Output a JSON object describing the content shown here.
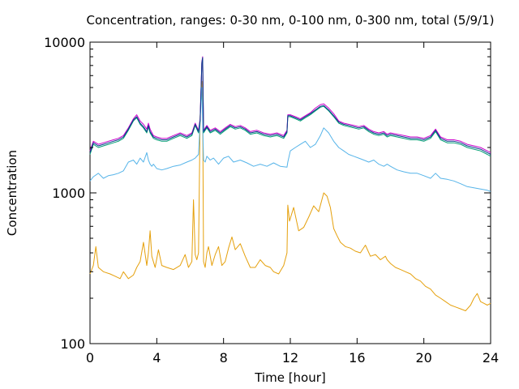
{
  "chart_data": {
    "type": "line",
    "title": "Concentration, ranges: 0-30 nm, 0-100 nm, 0-300 nm, total (5/9/1)",
    "xlabel": "Time [hour]",
    "ylabel": "Concentration",
    "xlim": [
      0,
      24
    ],
    "ylim": [
      100,
      10000
    ],
    "yscale": "log",
    "grid": false,
    "legend": "none",
    "x_ticks": [
      0,
      4,
      8,
      12,
      16,
      20,
      24
    ],
    "x_tick_labels": [
      "0",
      "4",
      "8",
      "12",
      "16",
      "20",
      "24"
    ],
    "y_ticks": [
      100,
      1000,
      10000
    ],
    "y_tick_labels": [
      "100",
      "1000",
      "10000"
    ],
    "series": [
      {
        "color": "#e5a00c",
        "x": [
          0,
          0.2,
          0.35,
          0.5,
          0.8,
          1.2,
          1.5,
          1.8,
          2.0,
          2.3,
          2.6,
          2.8,
          3.0,
          3.2,
          3.4,
          3.5,
          3.6,
          3.7,
          3.9,
          4.1,
          4.3,
          4.6,
          5.0,
          5.4,
          5.7,
          5.9,
          6.1,
          6.2,
          6.3,
          6.4,
          6.5,
          6.6,
          6.7,
          6.75,
          6.8,
          6.9,
          7.0,
          7.1,
          7.3,
          7.5,
          7.7,
          7.9,
          8.1,
          8.3,
          8.5,
          8.7,
          9.0,
          9.3,
          9.6,
          9.9,
          10.2,
          10.5,
          10.8,
          11.0,
          11.3,
          11.6,
          11.8,
          11.85,
          11.95,
          12.2,
          12.5,
          12.8,
          13.1,
          13.4,
          13.7,
          14.0,
          14.2,
          14.4,
          14.6,
          14.8,
          15.0,
          15.3,
          15.6,
          15.9,
          16.2,
          16.5,
          16.8,
          17.1,
          17.4,
          17.7,
          17.8,
          18.0,
          18.3,
          18.6,
          18.9,
          19.2,
          19.5,
          19.8,
          20.1,
          20.4,
          20.7,
          21.0,
          21.3,
          21.6,
          21.9,
          22.2,
          22.5,
          22.8,
          23.0,
          23.2,
          23.4,
          23.6,
          23.8,
          24.0
        ],
        "y": [
          290,
          330,
          440,
          320,
          300,
          290,
          280,
          270,
          300,
          270,
          285,
          320,
          350,
          470,
          330,
          400,
          560,
          380,
          320,
          420,
          330,
          320,
          310,
          330,
          390,
          320,
          350,
          900,
          390,
          360,
          400,
          3200,
          5500,
          4000,
          350,
          320,
          400,
          440,
          330,
          390,
          440,
          330,
          350,
          430,
          510,
          420,
          460,
          380,
          320,
          320,
          360,
          330,
          320,
          300,
          290,
          330,
          400,
          830,
          650,
          800,
          560,
          590,
          690,
          820,
          750,
          1000,
          950,
          800,
          580,
          520,
          470,
          440,
          430,
          410,
          400,
          450,
          380,
          390,
          360,
          380,
          360,
          340,
          320,
          310,
          300,
          290,
          270,
          260,
          240,
          230,
          210,
          200,
          190,
          180,
          175,
          170,
          165,
          180,
          200,
          215,
          190,
          185,
          180,
          185
        ]
      },
      {
        "color": "#56b4e9",
        "x": [
          0,
          0.2,
          0.5,
          0.8,
          1.1,
          1.4,
          1.7,
          2.0,
          2.3,
          2.6,
          2.8,
          3.0,
          3.2,
          3.4,
          3.5,
          3.6,
          3.7,
          3.8,
          4.0,
          4.3,
          4.6,
          5.0,
          5.4,
          5.8,
          6.1,
          6.3,
          6.5,
          6.7,
          6.8,
          6.9,
          7.0,
          7.2,
          7.4,
          7.7,
          8.0,
          8.3,
          8.6,
          9.0,
          9.4,
          9.8,
          10.2,
          10.6,
          11.0,
          11.4,
          11.8,
          11.85,
          12.0,
          12.3,
          12.6,
          12.9,
          13.2,
          13.5,
          13.8,
          14.0,
          14.3,
          14.6,
          14.9,
          15.2,
          15.5,
          15.8,
          16.1,
          16.4,
          16.7,
          17.0,
          17.3,
          17.6,
          17.8,
          18.0,
          18.4,
          18.8,
          19.2,
          19.6,
          20.0,
          20.4,
          20.7,
          21.0,
          21.4,
          21.8,
          22.2,
          22.6,
          23.0,
          23.4,
          23.8,
          24.0
        ],
        "y": [
          1200,
          1280,
          1350,
          1250,
          1300,
          1320,
          1350,
          1400,
          1600,
          1650,
          1550,
          1700,
          1600,
          1850,
          1650,
          1550,
          1500,
          1550,
          1450,
          1420,
          1450,
          1500,
          1530,
          1600,
          1650,
          1700,
          1800,
          5000,
          1650,
          1600,
          1750,
          1650,
          1700,
          1550,
          1700,
          1750,
          1600,
          1650,
          1580,
          1500,
          1550,
          1500,
          1580,
          1500,
          1480,
          1600,
          1900,
          2000,
          2100,
          2200,
          2000,
          2100,
          2400,
          2700,
          2500,
          2200,
          2000,
          1900,
          1800,
          1750,
          1700,
          1650,
          1600,
          1650,
          1550,
          1500,
          1550,
          1500,
          1420,
          1380,
          1350,
          1350,
          1300,
          1250,
          1350,
          1250,
          1230,
          1200,
          1150,
          1100,
          1080,
          1060,
          1040,
          1020
        ]
      },
      {
        "color": "#009e73",
        "x": [
          0,
          0.2,
          0.5,
          0.8,
          1.1,
          1.4,
          1.7,
          2.0,
          2.3,
          2.6,
          2.8,
          3.0,
          3.2,
          3.4,
          3.5,
          3.6,
          3.8,
          4.0,
          4.3,
          4.6,
          5.0,
          5.4,
          5.8,
          6.1,
          6.3,
          6.5,
          6.6,
          6.7,
          6.75,
          6.8,
          6.9,
          7.0,
          7.2,
          7.5,
          7.8,
          8.1,
          8.4,
          8.7,
          9.0,
          9.3,
          9.6,
          10.0,
          10.4,
          10.8,
          11.2,
          11.6,
          11.8,
          11.85,
          12.0,
          12.3,
          12.6,
          12.9,
          13.2,
          13.5,
          13.8,
          14.0,
          14.3,
          14.6,
          14.9,
          15.2,
          15.5,
          15.8,
          16.1,
          16.4,
          16.7,
          17.0,
          17.3,
          17.6,
          17.8,
          18.0,
          18.4,
          18.8,
          19.2,
          19.6,
          20.0,
          20.4,
          20.7,
          21.0,
          21.4,
          21.8,
          22.2,
          22.6,
          23.0,
          23.4,
          23.8,
          24.0
        ],
        "y": [
          1800,
          2100,
          2000,
          2050,
          2100,
          2150,
          2200,
          2300,
          2600,
          3000,
          3150,
          2850,
          2700,
          2500,
          2750,
          2500,
          2300,
          2250,
          2200,
          2200,
          2300,
          2400,
          2300,
          2400,
          2800,
          2500,
          3000,
          7200,
          7800,
          2500,
          2600,
          2700,
          2500,
          2600,
          2450,
          2600,
          2750,
          2650,
          2700,
          2600,
          2450,
          2500,
          2400,
          2350,
          2400,
          2300,
          2500,
          3200,
          3200,
          3100,
          3000,
          3150,
          3300,
          3500,
          3700,
          3750,
          3500,
          3200,
          2900,
          2800,
          2750,
          2700,
          2650,
          2700,
          2550,
          2450,
          2400,
          2450,
          2350,
          2400,
          2350,
          2300,
          2250,
          2250,
          2200,
          2300,
          2550,
          2250,
          2150,
          2150,
          2100,
          2000,
          1950,
          1900,
          1800,
          1750
        ]
      },
      {
        "color": "#cc00cc",
        "x": [
          0,
          0.2,
          0.5,
          0.8,
          1.1,
          1.4,
          1.7,
          2.0,
          2.3,
          2.6,
          2.8,
          3.0,
          3.2,
          3.4,
          3.5,
          3.6,
          3.8,
          4.0,
          4.3,
          4.6,
          5.0,
          5.4,
          5.8,
          6.1,
          6.3,
          6.5,
          6.6,
          6.7,
          6.75,
          6.8,
          6.9,
          7.0,
          7.2,
          7.5,
          7.8,
          8.1,
          8.4,
          8.7,
          9.0,
          9.3,
          9.6,
          10.0,
          10.4,
          10.8,
          11.2,
          11.6,
          11.8,
          11.85,
          12.0,
          12.3,
          12.6,
          12.9,
          13.2,
          13.5,
          13.8,
          14.0,
          14.3,
          14.6,
          14.9,
          15.2,
          15.5,
          15.8,
          16.1,
          16.4,
          16.7,
          17.0,
          17.3,
          17.6,
          17.8,
          18.0,
          18.4,
          18.8,
          19.2,
          19.6,
          20.0,
          20.4,
          20.7,
          21.0,
          21.4,
          21.8,
          22.2,
          22.6,
          23.0,
          23.4,
          23.8,
          24.0
        ],
        "y": [
          1900,
          2200,
          2100,
          2150,
          2200,
          2250,
          2300,
          2400,
          2700,
          3100,
          3300,
          3000,
          2850,
          2650,
          2900,
          2650,
          2400,
          2350,
          2300,
          2300,
          2400,
          2500,
          2400,
          2500,
          2900,
          2600,
          3100,
          7400,
          8000,
          2600,
          2700,
          2800,
          2600,
          2700,
          2550,
          2700,
          2850,
          2750,
          2800,
          2700,
          2550,
          2600,
          2500,
          2450,
          2500,
          2400,
          2600,
          3300,
          3300,
          3200,
          3100,
          3250,
          3400,
          3650,
          3850,
          3900,
          3650,
          3350,
          3000,
          2900,
          2850,
          2800,
          2750,
          2800,
          2650,
          2550,
          2500,
          2550,
          2450,
          2500,
          2450,
          2400,
          2350,
          2350,
          2300,
          2400,
          2650,
          2350,
          2250,
          2250,
          2200,
          2100,
          2050,
          2000,
          1900,
          1850
        ]
      },
      {
        "color": "#0b3b8c",
        "x": [
          0,
          0.2,
          0.5,
          0.8,
          1.1,
          1.4,
          1.7,
          2.0,
          2.3,
          2.6,
          2.8,
          3.0,
          3.2,
          3.4,
          3.5,
          3.6,
          3.8,
          4.0,
          4.3,
          4.6,
          5.0,
          5.4,
          5.8,
          6.1,
          6.3,
          6.5,
          6.6,
          6.7,
          6.75,
          6.8,
          6.9,
          7.0,
          7.2,
          7.5,
          7.8,
          8.1,
          8.4,
          8.7,
          9.0,
          9.3,
          9.6,
          10.0,
          10.4,
          10.8,
          11.2,
          11.6,
          11.8,
          11.85,
          12.0,
          12.3,
          12.6,
          12.9,
          13.2,
          13.5,
          13.8,
          14.0,
          14.3,
          14.6,
          14.9,
          15.2,
          15.5,
          15.8,
          16.1,
          16.4,
          16.7,
          17.0,
          17.3,
          17.6,
          17.8,
          18.0,
          18.4,
          18.8,
          19.2,
          19.6,
          20.0,
          20.4,
          20.7,
          21.0,
          21.4,
          21.8,
          22.2,
          22.6,
          23.0,
          23.4,
          23.8,
          24.0
        ],
        "y": [
          1850,
          2150,
          2050,
          2100,
          2150,
          2200,
          2250,
          2350,
          2650,
          3050,
          3200,
          2900,
          2750,
          2550,
          2800,
          2550,
          2350,
          2300,
          2250,
          2250,
          2350,
          2450,
          2350,
          2450,
          2850,
          2550,
          3050,
          7300,
          7900,
          2550,
          2650,
          2750,
          2550,
          2650,
          2500,
          2650,
          2800,
          2700,
          2750,
          2650,
          2500,
          2550,
          2450,
          2400,
          2450,
          2350,
          2550,
          3250,
          3250,
          3150,
          3050,
          3200,
          3350,
          3550,
          3750,
          3800,
          3550,
          3250,
          2950,
          2850,
          2800,
          2750,
          2700,
          2750,
          2600,
          2500,
          2450,
          2500,
          2400,
          2450,
          2400,
          2350,
          2300,
          2300,
          2250,
          2350,
          2600,
          2300,
          2200,
          2200,
          2150,
          2050,
          2000,
          1950,
          1850,
          1800
        ]
      }
    ]
  }
}
